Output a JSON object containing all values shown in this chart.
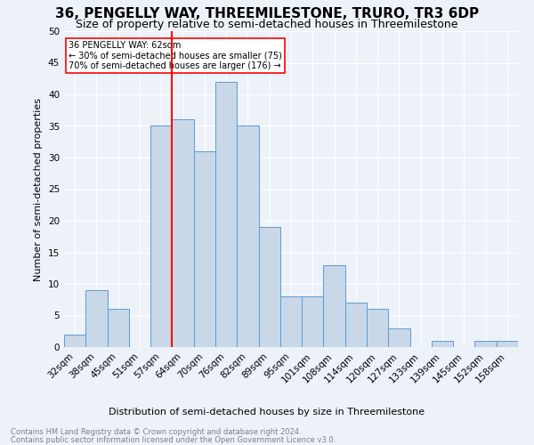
{
  "title": "36, PENGELLY WAY, THREEMILESTONE, TRURO, TR3 6DP",
  "subtitle": "Size of property relative to semi-detached houses in Threemilestone",
  "xlabel": "Distribution of semi-detached houses by size in Threemilestone",
  "ylabel": "Number of semi-detached properties",
  "footnote1": "Contains HM Land Registry data © Crown copyright and database right 2024.",
  "footnote2": "Contains public sector information licensed under the Open Government Licence v3.0.",
  "bar_labels": [
    "32sqm",
    "38sqm",
    "45sqm",
    "51sqm",
    "57sqm",
    "64sqm",
    "70sqm",
    "76sqm",
    "82sqm",
    "89sqm",
    "95sqm",
    "101sqm",
    "108sqm",
    "114sqm",
    "120sqm",
    "127sqm",
    "133sqm",
    "139sqm",
    "145sqm",
    "152sqm",
    "158sqm"
  ],
  "bar_values": [
    2,
    9,
    6,
    0,
    35,
    36,
    31,
    42,
    35,
    19,
    8,
    8,
    13,
    7,
    6,
    3,
    0,
    1,
    0,
    1,
    1
  ],
  "bar_color": "#c8d8e8",
  "bar_edge_color": "#5b9bd5",
  "annotation_title": "36 PENGELLY WAY: 62sqm",
  "annotation_line1": "← 30% of semi-detached houses are smaller (75)",
  "annotation_line2": "70% of semi-detached houses are larger (176) →",
  "vline_pos": 4.5,
  "ylim": [
    0,
    50
  ],
  "yticks": [
    0,
    5,
    10,
    15,
    20,
    25,
    30,
    35,
    40,
    45,
    50
  ],
  "background_color": "#edf2f9",
  "grid_color": "#ffffff",
  "title_fontsize": 11,
  "subtitle_fontsize": 9,
  "axis_fontsize": 8,
  "tick_fontsize": 7.5
}
